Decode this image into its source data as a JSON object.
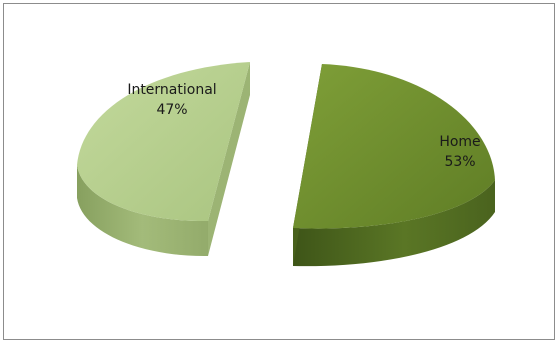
{
  "chart_data": {
    "type": "pie",
    "style": "3d-exploded",
    "slices": [
      {
        "label": "Home",
        "value": 53,
        "percent_label": "53%",
        "color": "#6f8f2f",
        "side_color": "#4f6a1f"
      },
      {
        "label": "International",
        "value": 47,
        "percent_label": "47%",
        "color": "#b7cf8e",
        "side_color": "#8ea56a"
      }
    ],
    "legend": "none",
    "data_labels": "inside"
  }
}
